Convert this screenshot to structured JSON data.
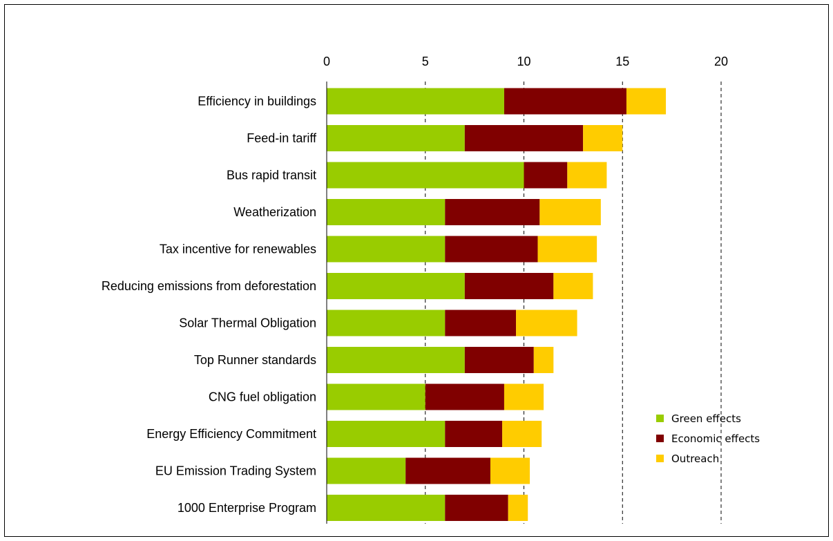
{
  "chart_data": {
    "type": "bar",
    "orientation": "horizontal",
    "stacked": true,
    "title": "",
    "xlabel": "",
    "ylabel": "",
    "xlim": [
      0,
      20
    ],
    "x_ticks": [
      0,
      5,
      10,
      15,
      20
    ],
    "x_axis_position": "top",
    "grid": "vertical dashed",
    "categories": [
      "Efficiency in buildings",
      "Feed-in tariff",
      "Bus rapid transit",
      "Weatherization",
      "Tax incentive for renewables",
      "Reducing emissions from deforestation",
      "Solar Thermal Obligation",
      "Top Runner standards",
      "CNG fuel obligation",
      "Energy Efficiency Commitment",
      "EU Emission Trading System",
      "1000 Enterprise Program"
    ],
    "series": [
      {
        "name": "Green effects",
        "color": "#99CC00",
        "values": [
          9.0,
          7.0,
          10.0,
          6.0,
          6.0,
          7.0,
          6.0,
          7.0,
          5.0,
          6.0,
          4.0,
          6.0
        ]
      },
      {
        "name": "Economic effects",
        "color": "#800000",
        "values": [
          6.2,
          6.0,
          2.2,
          4.8,
          4.7,
          4.5,
          3.6,
          3.5,
          4.0,
          2.9,
          4.3,
          3.2
        ]
      },
      {
        "name": "Outreach",
        "color": "#FFCC00",
        "values": [
          2.0,
          2.0,
          2.0,
          3.1,
          3.0,
          2.0,
          3.1,
          1.0,
          2.0,
          2.0,
          2.0,
          1.0
        ]
      }
    ],
    "legend_position": "bottom-right"
  }
}
